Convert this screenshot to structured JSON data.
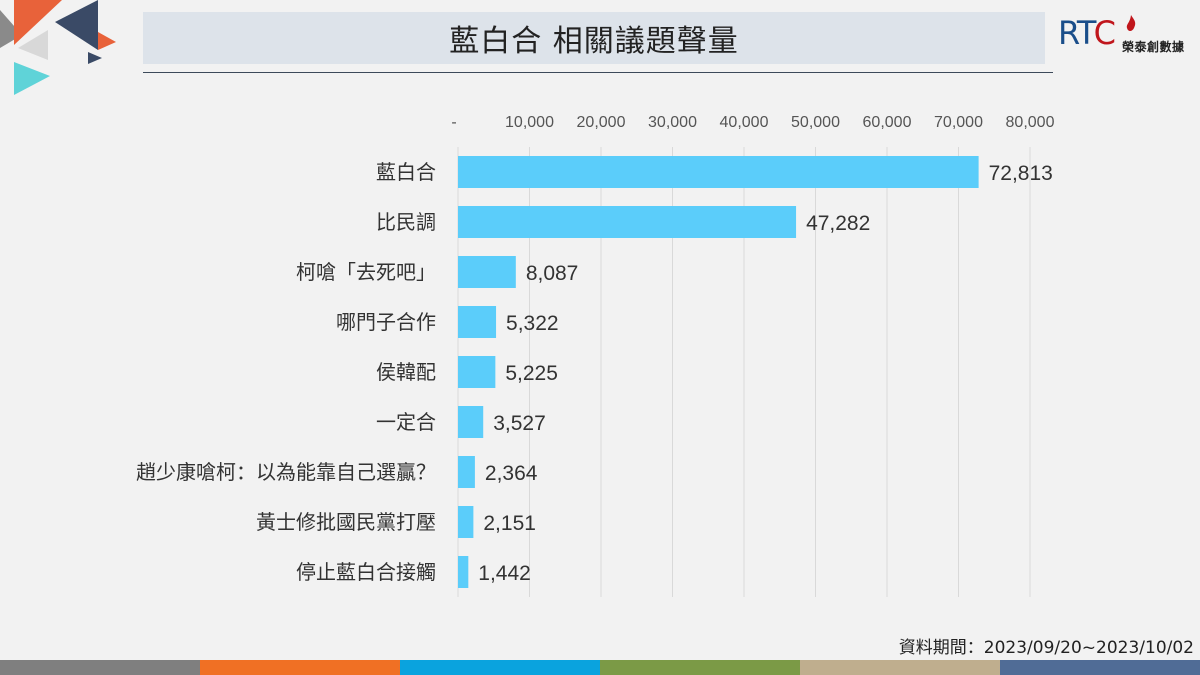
{
  "header": {
    "title": "藍白合 相關議題聲量",
    "logo_mark_r": "R",
    "logo_mark_t": "T",
    "logo_mark_c": "C",
    "logo_company": "榮泰創數據"
  },
  "footer": {
    "date_range": "資料期間：2023/09/20~2023/10/02"
  },
  "colors": {
    "bar": "#5bcdfa",
    "grid": "#d9d9d9",
    "title_bg": "#dde3ea",
    "stripes": [
      "#7f7f7f",
      "#f07024",
      "#0aa3de",
      "#7b9a46",
      "#bfae8e",
      "#506c96"
    ]
  },
  "chart_data": {
    "type": "bar",
    "orientation": "horizontal",
    "categories": [
      "藍白合",
      "比民調",
      "柯嗆「去死吧」",
      "哪門子合作",
      "侯韓配",
      "一定合",
      "趙少康嗆柯：以為能靠自己選贏？",
      "黃士修批國民黨打壓",
      "停止藍白合接觸"
    ],
    "values": [
      72813,
      47282,
      8087,
      5322,
      5225,
      3527,
      2364,
      2151,
      1442
    ],
    "value_labels": [
      "72,813",
      "47,282",
      "8,087",
      "5,322",
      "5,225",
      "3,527",
      "2,364",
      "2,151",
      "1,442"
    ],
    "xlim": [
      0,
      80000
    ],
    "ticks": [
      0,
      10000,
      20000,
      30000,
      40000,
      50000,
      60000,
      70000,
      80000
    ],
    "tick_labels": [
      "-",
      "10,000",
      "20,000",
      "30,000",
      "40,000",
      "50,000",
      "60,000",
      "70,000",
      "80,000"
    ],
    "axis_position": "top",
    "grid": true,
    "legend": false
  }
}
